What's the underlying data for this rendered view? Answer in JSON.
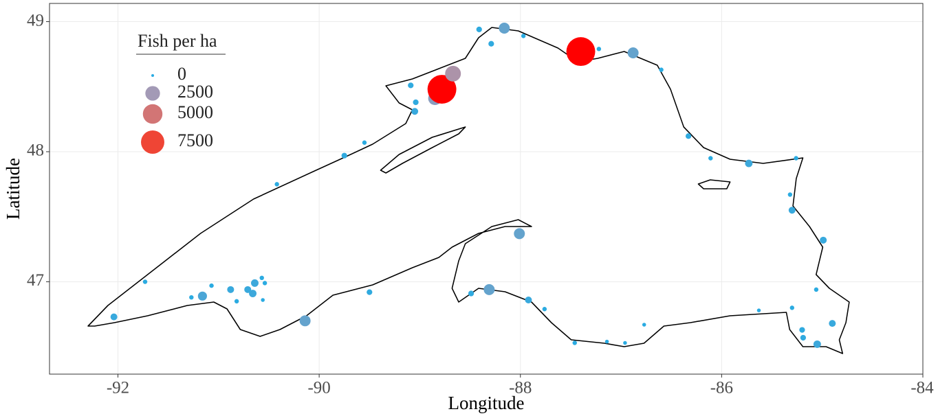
{
  "chart_data": {
    "type": "scatter",
    "x_label": "Longitude",
    "y_label": "Latitude",
    "xlim": [
      -92.68,
      -84
    ],
    "ylim": [
      46.29,
      49.14
    ],
    "xticks": [
      -92,
      -90,
      -88,
      -86,
      -84
    ],
    "yticks": [
      47,
      48,
      49
    ],
    "grid": true,
    "size_legend": {
      "title": "Fish per ha",
      "values": [
        0,
        2500,
        5000,
        7500
      ],
      "colors": [
        "#29abe2",
        "#a39ab6",
        "#d27575",
        "#ef4535"
      ]
    },
    "x": [
      -92.04,
      -91.73,
      -91.16,
      -91.27,
      -91.07,
      -90.88,
      -90.82,
      -90.71,
      -90.64,
      -90.66,
      -90.57,
      -90.54,
      -90.56,
      -90.14,
      -89.5,
      -90.42,
      -89.75,
      -89.55,
      -89.09,
      -89.04,
      -89.05,
      -88.85,
      -88.78,
      -88.67,
      -88.41,
      -88.29,
      -88.16,
      -87.97,
      -87.4,
      -87.22,
      -86.88,
      -86.6,
      -86.33,
      -86.11,
      -85.73,
      -85.26,
      -85.32,
      -85.3,
      -84.99,
      -84.9,
      -85.05,
      -85.2,
      -85.19,
      -85.06,
      -85.3,
      -85.63,
      -86.77,
      -87.14,
      -86.96,
      -87.46,
      -87.76,
      -87.92,
      -88.31,
      -88.49,
      -88.01
    ],
    "y": [
      46.73,
      47.0,
      46.89,
      46.88,
      46.97,
      46.94,
      46.85,
      46.94,
      46.99,
      46.91,
      47.03,
      46.99,
      46.86,
      46.7,
      46.92,
      47.75,
      47.97,
      48.07,
      48.51,
      48.38,
      48.31,
      48.41,
      48.48,
      48.6,
      48.94,
      48.83,
      48.95,
      48.89,
      48.77,
      48.79,
      48.76,
      48.63,
      48.12,
      47.95,
      47.91,
      47.95,
      47.67,
      47.55,
      47.32,
      46.68,
      46.52,
      46.63,
      46.57,
      46.94,
      46.8,
      46.78,
      46.67,
      46.54,
      46.53,
      46.53,
      46.79,
      46.86,
      46.94,
      46.91,
      47.37
    ],
    "sizes": [
      300,
      50,
      700,
      50,
      50,
      300,
      50,
      300,
      400,
      400,
      50,
      50,
      20,
      1200,
      150,
      50,
      150,
      50,
      150,
      150,
      300,
      2000,
      12000,
      3000,
      150,
      150,
      1200,
      50,
      12000,
      50,
      1200,
      50,
      150,
      50,
      400,
      50,
      50,
      300,
      300,
      300,
      400,
      150,
      150,
      50,
      50,
      20,
      20,
      20,
      20,
      50,
      50,
      300,
      1200,
      150,
      1200
    ]
  }
}
